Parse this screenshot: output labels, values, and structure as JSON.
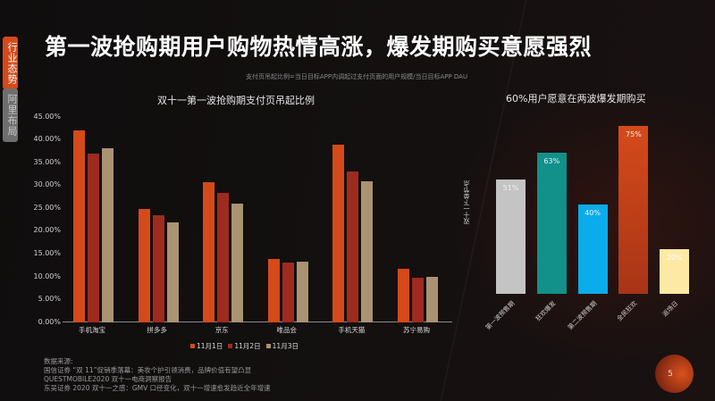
{
  "sidebar": {
    "tabs": [
      {
        "label": "行业态势",
        "active": true
      },
      {
        "label": "阿里布局",
        "active": false
      }
    ]
  },
  "header": {
    "title": "第一波抢购期用户购物热情高涨，爆发期购买意愿强烈",
    "note": "支付页吊起比例=当日目标APP内调起过支付页面的用户规模/当日目标APP DAU"
  },
  "colors": {
    "accent": "#D54A1A",
    "series_1": "#D54A1A",
    "series_2": "#9E2B1E",
    "series_3": "#A99372",
    "right_bars": [
      "#C4C4C4",
      "#12908A",
      "#0AACEB",
      "#C8431B",
      "#FDE9A4"
    ]
  },
  "chart_data": [
    {
      "type": "bar",
      "title": "双十一第一波抢购期支付页吊起比例",
      "xlabel": "",
      "ylabel": "",
      "ylim": [
        0,
        45
      ],
      "yticks": [
        "0.00%",
        "5.00%",
        "10.00%",
        "15.00%",
        "20.00%",
        "25.00%",
        "30.00%",
        "35.00%",
        "40.00%",
        "45.00%"
      ],
      "categories": [
        "手机淘宝",
        "拼多多",
        "京东",
        "唯品会",
        "手机天猫",
        "苏宁易购"
      ],
      "series": [
        {
          "name": "11月1日",
          "values": [
            42.1,
            24.7,
            30.6,
            13.9,
            38.8,
            11.7
          ]
        },
        {
          "name": "11月2日",
          "values": [
            36.9,
            23.5,
            28.4,
            13.1,
            33.0,
            9.7
          ]
        },
        {
          "name": "11月3日",
          "values": [
            38.0,
            21.9,
            25.9,
            13.3,
            30.9,
            9.9
          ]
        }
      ],
      "legend_position": "bottom",
      "grid": false
    },
    {
      "type": "bar",
      "title": "60%用户愿意在两波爆发期购买",
      "ylabel": "双十一下单节点",
      "categories": [
        "第一波预售期",
        "狂欢爆发",
        "第二波预售期",
        "全民狂欢",
        "返场日"
      ],
      "values": [
        51,
        63,
        40,
        75,
        20
      ],
      "value_labels": [
        "51%",
        "63%",
        "40%",
        "75%",
        "20%"
      ],
      "ylim": [
        0,
        80
      ],
      "grid": false
    }
  ],
  "left_chart": {
    "title": "双十一第一波抢购期支付页吊起比例",
    "yticks": [
      "45.00%",
      "40.00%",
      "35.00%",
      "30.00%",
      "25.00%",
      "20.00%",
      "15.00%",
      "10.00%",
      "5.00%",
      "0.00%"
    ],
    "categories": [
      "手机淘宝",
      "拼多多",
      "京东",
      "唯品会",
      "手机天猫",
      "苏宁易购"
    ],
    "legend": [
      "11月1日",
      "11月2日",
      "11月3日"
    ]
  },
  "right_chart": {
    "title": "60%用户愿意在两波爆发期购买",
    "ylabel": "双十一下单节点",
    "bars": [
      {
        "label": "第一波预售期",
        "value": "51%"
      },
      {
        "label": "狂欢爆发",
        "value": "63%"
      },
      {
        "label": "第二波预售期",
        "value": "40%"
      },
      {
        "label": "全民狂欢",
        "value": "75%"
      },
      {
        "label": "返场日",
        "value": "20%"
      }
    ]
  },
  "sources": {
    "heading": "数据来源:",
    "lines": [
      "国信证券 “双 11”促销季落幕：美妆个护引领消费，品牌价值有望凸显",
      "QUESTMOBILE2020 双十一电商洞察报告",
      "东吴证券 2020 双十一之感：GMV 口径变化，双十一增速愈发趋近全年增速"
    ]
  },
  "page": {
    "number": "5"
  }
}
